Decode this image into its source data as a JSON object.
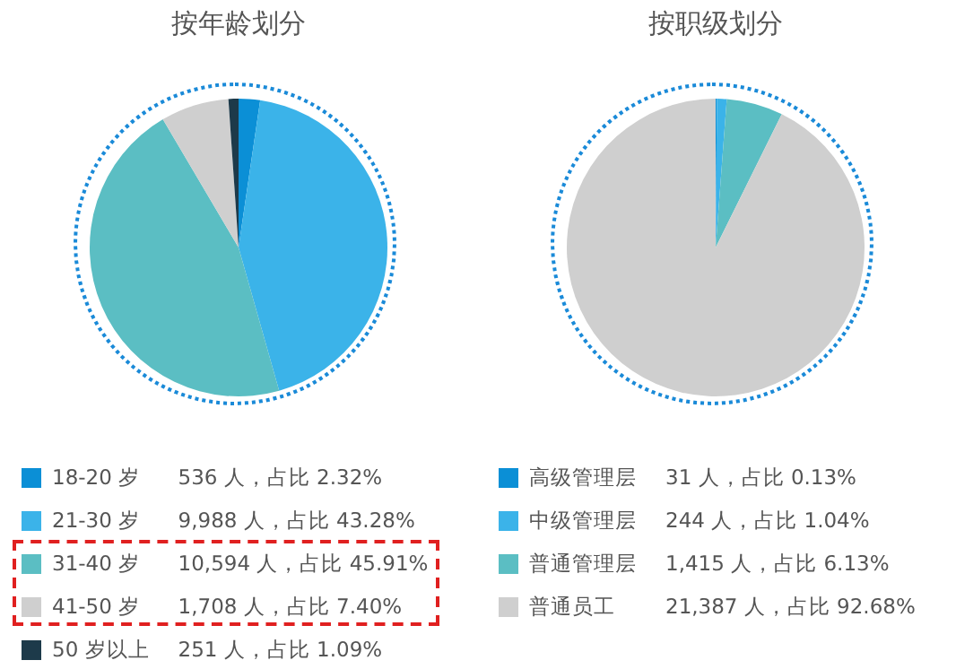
{
  "chart_data": [
    {
      "type": "pie",
      "title": "按年龄划分",
      "legend": "bottom",
      "categories": [
        "18-20 岁",
        "21-30 岁",
        "31-40 岁",
        "41-50 岁",
        "50 岁以上"
      ],
      "values": [
        536,
        9988,
        10594,
        1708,
        251
      ],
      "value_labels": [
        "536 人，占比 2.32%",
        "9,988 人，占比 43.28%",
        "10,594 人，占比 45.91%",
        "1,708 人，占比 7.40%",
        "251 人，占比 1.09%"
      ],
      "colors": [
        "#0b8fd6",
        "#3bb3e9",
        "#5bbec3",
        "#cfcfcf",
        "#1d3a4a"
      ]
    },
    {
      "type": "pie",
      "title": "按职级划分",
      "legend": "bottom",
      "categories": [
        "高级管理层",
        "中级管理层",
        "普通管理层",
        "普通员工"
      ],
      "values": [
        31,
        244,
        1415,
        21387
      ],
      "value_labels": [
        "31 人，占比 0.13%",
        "244 人，占比 1.04%",
        "1,415 人，占比 6.13%",
        "21,387 人，占比 92.68%"
      ],
      "colors": [
        "#0b8fd6",
        "#3bb3e9",
        "#5bbec3",
        "#cfcfcf"
      ]
    }
  ]
}
